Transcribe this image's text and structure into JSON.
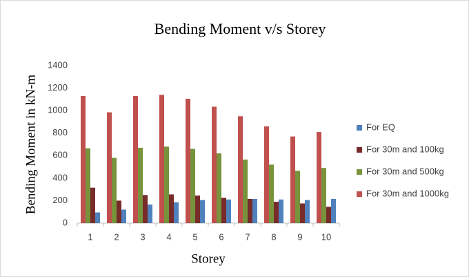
{
  "chart_data": {
    "type": "bar",
    "title": "Bending Moment v/s Storey",
    "x_label": "Storey",
    "y_label": "Bending Moment in kN-m",
    "categories": [
      "1",
      "2",
      "3",
      "4",
      "5",
      "6",
      "7",
      "8",
      "9",
      "10"
    ],
    "series": [
      {
        "name": "For EQ",
        "color": "#4f81bd",
        "values": [
          95,
          120,
          165,
          185,
          205,
          210,
          215,
          210,
          205,
          215
        ]
      },
      {
        "name": "For 30m and 100kg",
        "color": "#772c2a",
        "values": [
          315,
          200,
          250,
          255,
          245,
          225,
          215,
          190,
          175,
          145
        ]
      },
      {
        "name": "For 30m and 500kg",
        "color": "#77933c",
        "values": [
          665,
          580,
          670,
          680,
          660,
          620,
          565,
          520,
          465,
          490
        ]
      },
      {
        "name": "For 30m and 1000kg",
        "color": "#c0504d",
        "values": [
          1130,
          985,
          1130,
          1140,
          1105,
          1035,
          950,
          860,
          770,
          810
        ]
      }
    ],
    "ylim": [
      0,
      1400
    ],
    "yticks": [
      0,
      200,
      400,
      600,
      800,
      1000,
      1200,
      1400
    ],
    "grid": false,
    "legend": "right"
  }
}
